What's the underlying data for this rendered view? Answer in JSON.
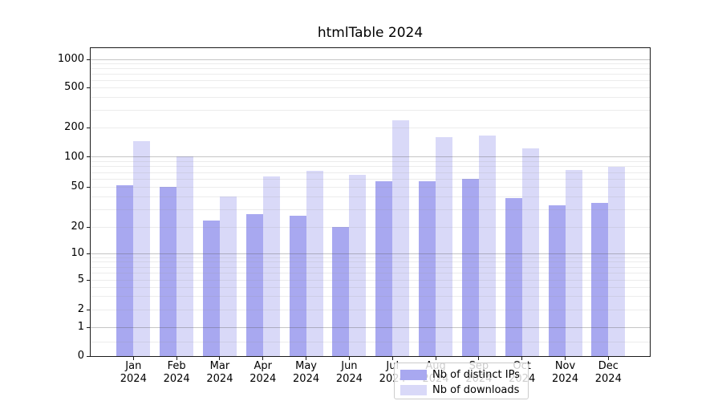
{
  "title": "htmlTable 2024",
  "chart_data": {
    "type": "bar",
    "title": "htmlTable 2024",
    "categories": [
      "Jan 2024",
      "Feb 2024",
      "Mar 2024",
      "Apr 2024",
      "May 2024",
      "Jun 2024",
      "Jul 2024",
      "Aug 2024",
      "Sep 2024",
      "Oct 2024",
      "Nov 2024",
      "Dec 2024"
    ],
    "series": [
      {
        "name": "Nb of distinct IPs",
        "color": "#a8a8f0",
        "values": [
          52,
          50,
          23,
          27,
          26,
          20,
          57,
          57,
          61,
          39,
          33,
          35
        ]
      },
      {
        "name": "Nb of downloads",
        "color": "#d9d9f8",
        "values": [
          145,
          102,
          40,
          64,
          73,
          66,
          235,
          158,
          166,
          122,
          74,
          80
        ]
      }
    ],
    "yscale": "symlog",
    "yticks": [
      0,
      1,
      2,
      5,
      10,
      20,
      50,
      100,
      200,
      500,
      1000
    ],
    "ylim": [
      0,
      1300
    ],
    "grid": true,
    "legend_position": "lower center",
    "colors": {
      "bar_distinct_ips": "#a8a8f0",
      "bar_downloads": "#d9d9f8",
      "major_grid": "#b9b9b9",
      "minor_grid": "#e4e4e4",
      "axis": "#1a1a1a",
      "legend_border": "#cccccc"
    }
  }
}
